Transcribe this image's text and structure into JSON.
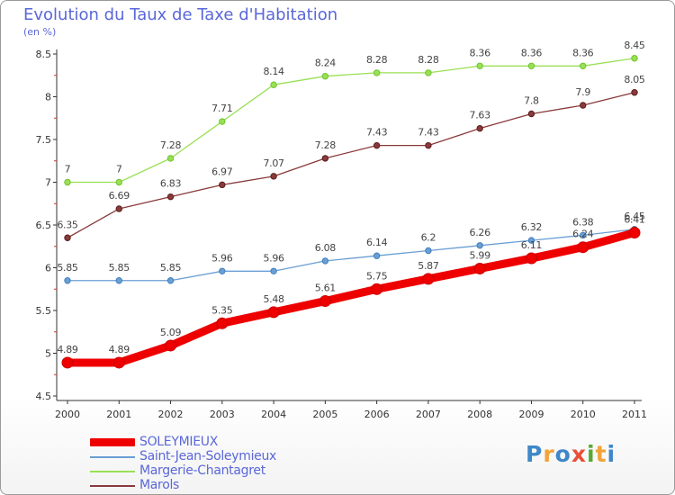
{
  "title": "Evolution du Taux de Taxe d'Habitation",
  "unit": "(en %)",
  "logo": {
    "letters": [
      "P",
      "r",
      "o",
      "x",
      "i",
      "t",
      "i"
    ],
    "colors": [
      "#3f87c8",
      "#f2a33a",
      "#3f87c8",
      "#e8503a",
      "#5aa832",
      "#f2a33a",
      "#3f87c8"
    ]
  },
  "chart_data": {
    "type": "line",
    "x": [
      "2000",
      "2001",
      "2002",
      "2003",
      "2004",
      "2005",
      "2006",
      "2007",
      "2008",
      "2009",
      "2010",
      "2011"
    ],
    "ylim": [
      4.5,
      8.5
    ],
    "yticks": [
      4.5,
      5,
      5.5,
      6,
      6.5,
      7,
      7.5,
      8,
      8.5
    ],
    "ytick_labels": [
      "4.5",
      "5",
      "5.5",
      "6",
      "6.5",
      "7",
      "7.5",
      "8",
      "8.5"
    ],
    "grid": false,
    "legend_position": "bottom-left",
    "series": [
      {
        "name": "SOLEYMIEUX",
        "color": "#ee0000",
        "width": "thick",
        "values": [
          4.89,
          4.89,
          5.09,
          5.35,
          5.48,
          5.61,
          5.75,
          5.87,
          5.99,
          6.11,
          6.24,
          6.41
        ],
        "labels": [
          "4.89",
          "4.89",
          "5.09",
          "5.35",
          "5.48",
          "5.61",
          "5.75",
          "5.87",
          "5.99",
          "6.11",
          "6.24",
          "6.41"
        ]
      },
      {
        "name": "Saint-Jean-Soleymieux",
        "color": "#6a9fd4",
        "width": "thin",
        "values": [
          5.85,
          5.85,
          5.85,
          5.96,
          5.96,
          6.08,
          6.14,
          6.2,
          6.26,
          6.32,
          6.38,
          6.45
        ],
        "labels": [
          "5.85",
          "5.85",
          "5.85",
          "5.96",
          "5.96",
          "6.08",
          "6.14",
          "6.2",
          "6.26",
          "6.32",
          "6.38",
          "6.45"
        ]
      },
      {
        "name": "Margerie-Chantagret",
        "color": "#99e055",
        "width": "thin",
        "values": [
          7,
          7,
          7.28,
          7.71,
          8.14,
          8.24,
          8.28,
          8.28,
          8.36,
          8.36,
          8.36,
          8.45
        ],
        "labels": [
          "7",
          "7",
          "7.28",
          "7.71",
          "8.14",
          "8.24",
          "8.28",
          "8.28",
          "8.36",
          "8.36",
          "8.36",
          "8.45"
        ]
      },
      {
        "name": "Marols",
        "color": "#8a3a3a",
        "width": "thin",
        "values": [
          6.35,
          6.69,
          6.83,
          6.97,
          7.07,
          7.28,
          7.43,
          7.43,
          7.63,
          7.8,
          7.9,
          8.05
        ],
        "labels": [
          "6.35",
          "6.69",
          "6.83",
          "6.97",
          "7.07",
          "7.28",
          "7.43",
          "7.43",
          "7.63",
          "7.8",
          "7.9",
          "8.05"
        ]
      }
    ]
  }
}
